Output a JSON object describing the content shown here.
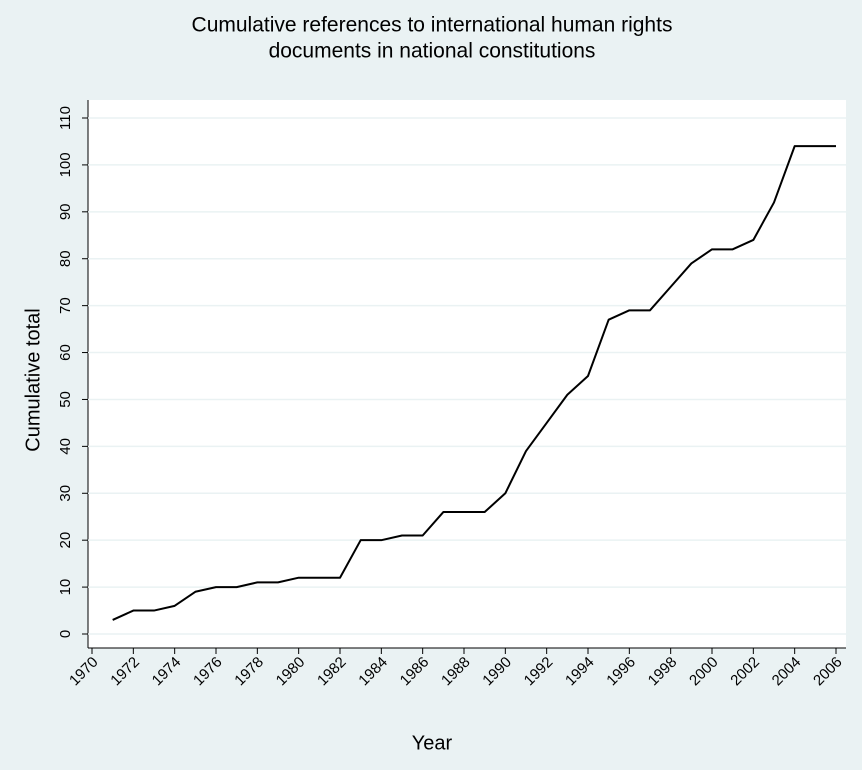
{
  "chart_data": {
    "type": "line",
    "title": [
      "Cumulative references to international human rights",
      "documents in national constitutions"
    ],
    "x_label": "Year",
    "y_label": "Cumulative total",
    "x": [
      1971,
      1972,
      1973,
      1974,
      1975,
      1976,
      1977,
      1978,
      1979,
      1980,
      1981,
      1982,
      1983,
      1984,
      1985,
      1986,
      1987,
      1988,
      1989,
      1990,
      1991,
      1992,
      1993,
      1994,
      1995,
      1996,
      1997,
      1998,
      1999,
      2000,
      2001,
      2002,
      2003,
      2004,
      2005,
      2006
    ],
    "values": [
      3,
      5,
      5,
      6,
      9,
      10,
      10,
      11,
      11,
      12,
      12,
      12,
      20,
      20,
      21,
      21,
      26,
      26,
      26,
      30,
      39,
      45,
      51,
      55,
      67,
      69,
      69,
      74,
      79,
      82,
      82,
      84,
      92,
      104,
      104,
      104
    ],
    "color": "#000000",
    "xlim": [
      1970,
      2006
    ],
    "xticks": [
      1970,
      1972,
      1974,
      1976,
      1978,
      1980,
      1982,
      1984,
      1986,
      1988,
      1990,
      1992,
      1994,
      1996,
      1998,
      2000,
      2002,
      2004,
      2006
    ],
    "ylim": [
      0,
      110
    ],
    "yticks": [
      0,
      10,
      20,
      30,
      40,
      50,
      60,
      70,
      80,
      90,
      100,
      110
    ],
    "grid": true
  }
}
